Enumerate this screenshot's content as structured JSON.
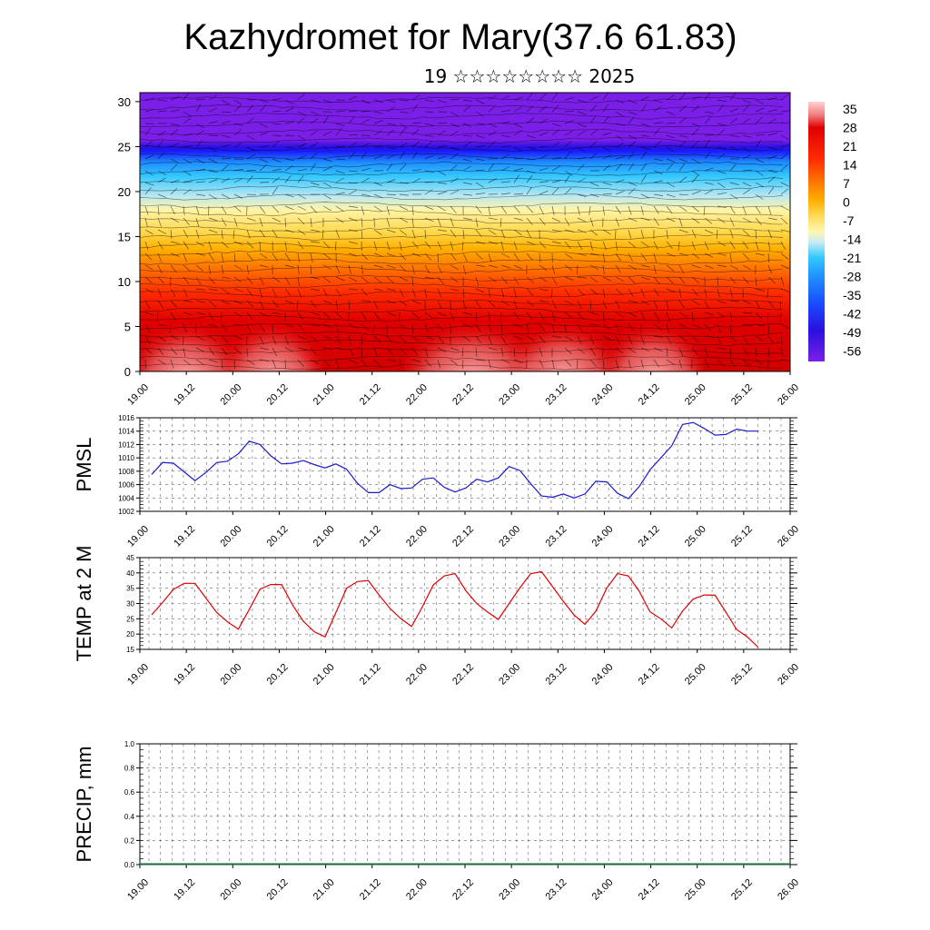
{
  "header": {
    "title": "Kazhydromet for Mary(37.6 61.83)",
    "subtitle": "19 ☆☆☆☆☆☆☆☆ 2025"
  },
  "time_ticks": [
    "19.00",
    "19.12",
    "20.00",
    "20.12",
    "21.00",
    "21.12",
    "22.00",
    "22.12",
    "23.00",
    "23.12",
    "24.00",
    "24.12",
    "25.00",
    "25.12",
    "26.00"
  ],
  "colorbar": {
    "labels": [
      "35",
      "28",
      "21",
      "14",
      "7",
      "0",
      "-7",
      "-14",
      "-21",
      "-28",
      "-35",
      "-42",
      "-49",
      "-56"
    ]
  },
  "chart_data": [
    {
      "type": "heatmap",
      "name_printed": "",
      "x_ticks": [
        "19.00",
        "19.12",
        "20.00",
        "20.12",
        "21.00",
        "21.12",
        "22.00",
        "22.12",
        "23.00",
        "23.12",
        "24.00",
        "24.12",
        "25.00",
        "25.12",
        "26.00"
      ],
      "y_ticks": [
        0,
        5,
        10,
        15,
        20,
        25,
        30
      ],
      "ylim": [
        0,
        31
      ],
      "value_range": [
        -60,
        38
      ],
      "colors": [
        "#7b1fe8",
        "#3a12e0",
        "#1a1aff",
        "#1e8cff",
        "#33c8ff",
        "#a8e6f5",
        "#fff7b0",
        "#ffe066",
        "#ffb000",
        "#ff7000",
        "#ff2a00",
        "#e80000",
        "#c80000",
        "#f08080",
        "#ffc8c8"
      ]
    },
    {
      "type": "line",
      "ylabel": "PMSL",
      "ylim": [
        1002,
        1016
      ],
      "y_ticks": [
        "1002",
        "1004",
        "1006",
        "1008",
        "1010",
        "1012",
        "1014",
        "1016"
      ],
      "x_ticks": [
        "19.00",
        "19.12",
        "20.00",
        "20.12",
        "21.00",
        "21.12",
        "22.00",
        "22.12",
        "23.00",
        "23.12",
        "24.00",
        "24.12",
        "25.00",
        "25.12",
        "26.00"
      ],
      "color": "#1a1acc",
      "values": [
        1007.5,
        1009.3,
        1009.2,
        1007.9,
        1006.6,
        1007.8,
        1009.3,
        1009.5,
        1010.6,
        1012.5,
        1012.0,
        1010.3,
        1009.1,
        1009.2,
        1009.6,
        1009.0,
        1008.5,
        1009.1,
        1008.3,
        1006.2,
        1004.8,
        1004.8,
        1006.0,
        1005.4,
        1005.5,
        1006.8,
        1007.0,
        1005.6,
        1004.9,
        1005.5,
        1006.8,
        1006.4,
        1007.0,
        1008.7,
        1008.1,
        1006.1,
        1004.3,
        1004.1,
        1004.6,
        1004.0,
        1004.6,
        1006.5,
        1006.4,
        1004.7,
        1003.9,
        1005.7,
        1008.2,
        1010.0,
        1011.8,
        1015.0,
        1015.3,
        1014.4,
        1013.4,
        1013.5,
        1014.3,
        1014.0,
        1014.0
      ]
    },
    {
      "type": "line",
      "ylabel": "TEMP at 2 M",
      "ylim": [
        15,
        45
      ],
      "y_ticks": [
        "15",
        "20",
        "25",
        "30",
        "35",
        "40",
        "45"
      ],
      "x_ticks": [
        "19.00",
        "19.12",
        "20.00",
        "20.12",
        "21.00",
        "21.12",
        "22.00",
        "22.12",
        "23.00",
        "23.12",
        "24.00",
        "24.12",
        "25.00",
        "25.12",
        "26.00"
      ],
      "color": "#e00000",
      "values": [
        26.3,
        30.3,
        34.6,
        36.6,
        36.6,
        31.8,
        27.1,
        24.0,
        21.6,
        28.0,
        34.7,
        36.2,
        36.2,
        29.5,
        24.2,
        20.8,
        19.1,
        27.0,
        35.0,
        37.2,
        37.5,
        32.7,
        28.4,
        25.0,
        22.5,
        29.0,
        36.1,
        39.0,
        39.8,
        34.2,
        30.0,
        27.2,
        24.8,
        30.0,
        35.2,
        39.8,
        40.4,
        35.5,
        30.7,
        26.2,
        23.2,
        27.5,
        35.0,
        39.8,
        39.0,
        34.0,
        27.3,
        25.0,
        22.0,
        27.5,
        31.5,
        32.8,
        32.7,
        27.2,
        21.5,
        19.0,
        15.6
      ]
    },
    {
      "type": "bar",
      "ylabel": "PRECIP, mm",
      "ylim": [
        0,
        1
      ],
      "y_ticks": [
        "0.0",
        "0.2",
        "0.4",
        "0.6",
        "0.8",
        "1.0"
      ],
      "x_ticks": [
        "19.00",
        "19.12",
        "20.00",
        "20.12",
        "21.00",
        "21.12",
        "22.00",
        "22.12",
        "23.00",
        "23.12",
        "24.00",
        "24.12",
        "25.00",
        "25.12",
        "26.00"
      ],
      "values": [],
      "baseline_color": "#1a6a3a"
    }
  ]
}
